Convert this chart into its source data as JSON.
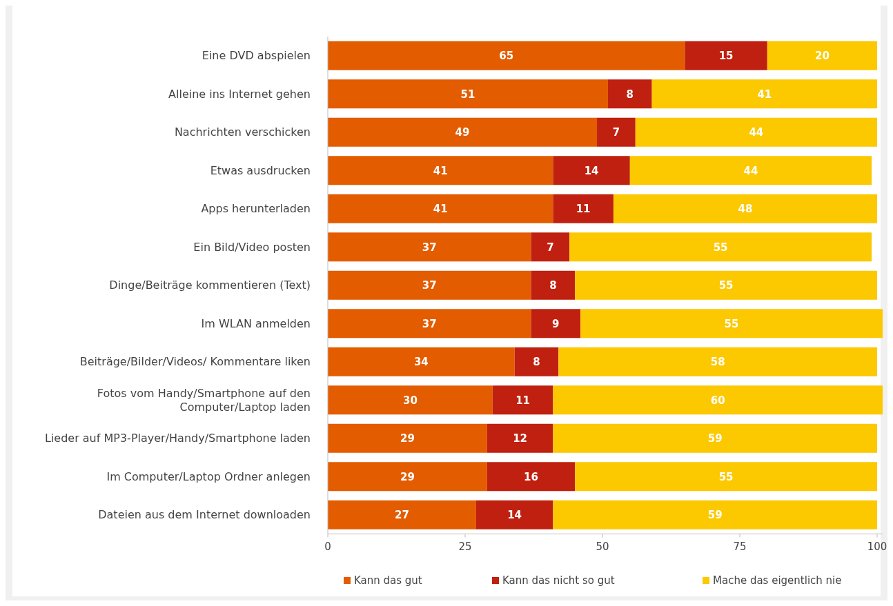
{
  "chart_data": {
    "type": "bar",
    "orientation": "horizontal",
    "stacked": true,
    "data_labels": true,
    "legend": "bottom",
    "grid": false,
    "categories": [
      "Eine DVD abspielen",
      "Alleine ins Internet gehen",
      "Nachrichten verschicken",
      "Etwas ausdrucken",
      "Apps herunterladen",
      "Ein Bild/Video posten",
      "Dinge/Beiträge kommentieren (Text)",
      "Im WLAN anmelden",
      "Beiträge/Bilder/Videos/ Kommentare liken",
      "Fotos vom Handy/Smartphone auf den Computer/Laptop laden",
      "Lieder auf MP3-Player/Handy/Smartphone laden",
      "Im Computer/Laptop Ordner anlegen",
      "Dateien aus dem Internet downloaden"
    ],
    "series": [
      {
        "name": "Kann das gut",
        "color": "#e35c00",
        "values": [
          65,
          51,
          49,
          41,
          41,
          37,
          37,
          37,
          34,
          30,
          29,
          29,
          27
        ]
      },
      {
        "name": "Kann das nicht so gut",
        "color": "#c0200f",
        "values": [
          15,
          8,
          7,
          14,
          11,
          7,
          8,
          9,
          8,
          11,
          12,
          16,
          14
        ]
      },
      {
        "name": "Mache das eigentlich nie",
        "color": "#fcc800",
        "values": [
          20,
          41,
          44,
          44,
          48,
          55,
          55,
          55,
          58,
          60,
          59,
          55,
          59
        ]
      }
    ],
    "xlim": [
      0,
      101
    ],
    "xticks": [
      0,
      25,
      50,
      75,
      100
    ]
  }
}
